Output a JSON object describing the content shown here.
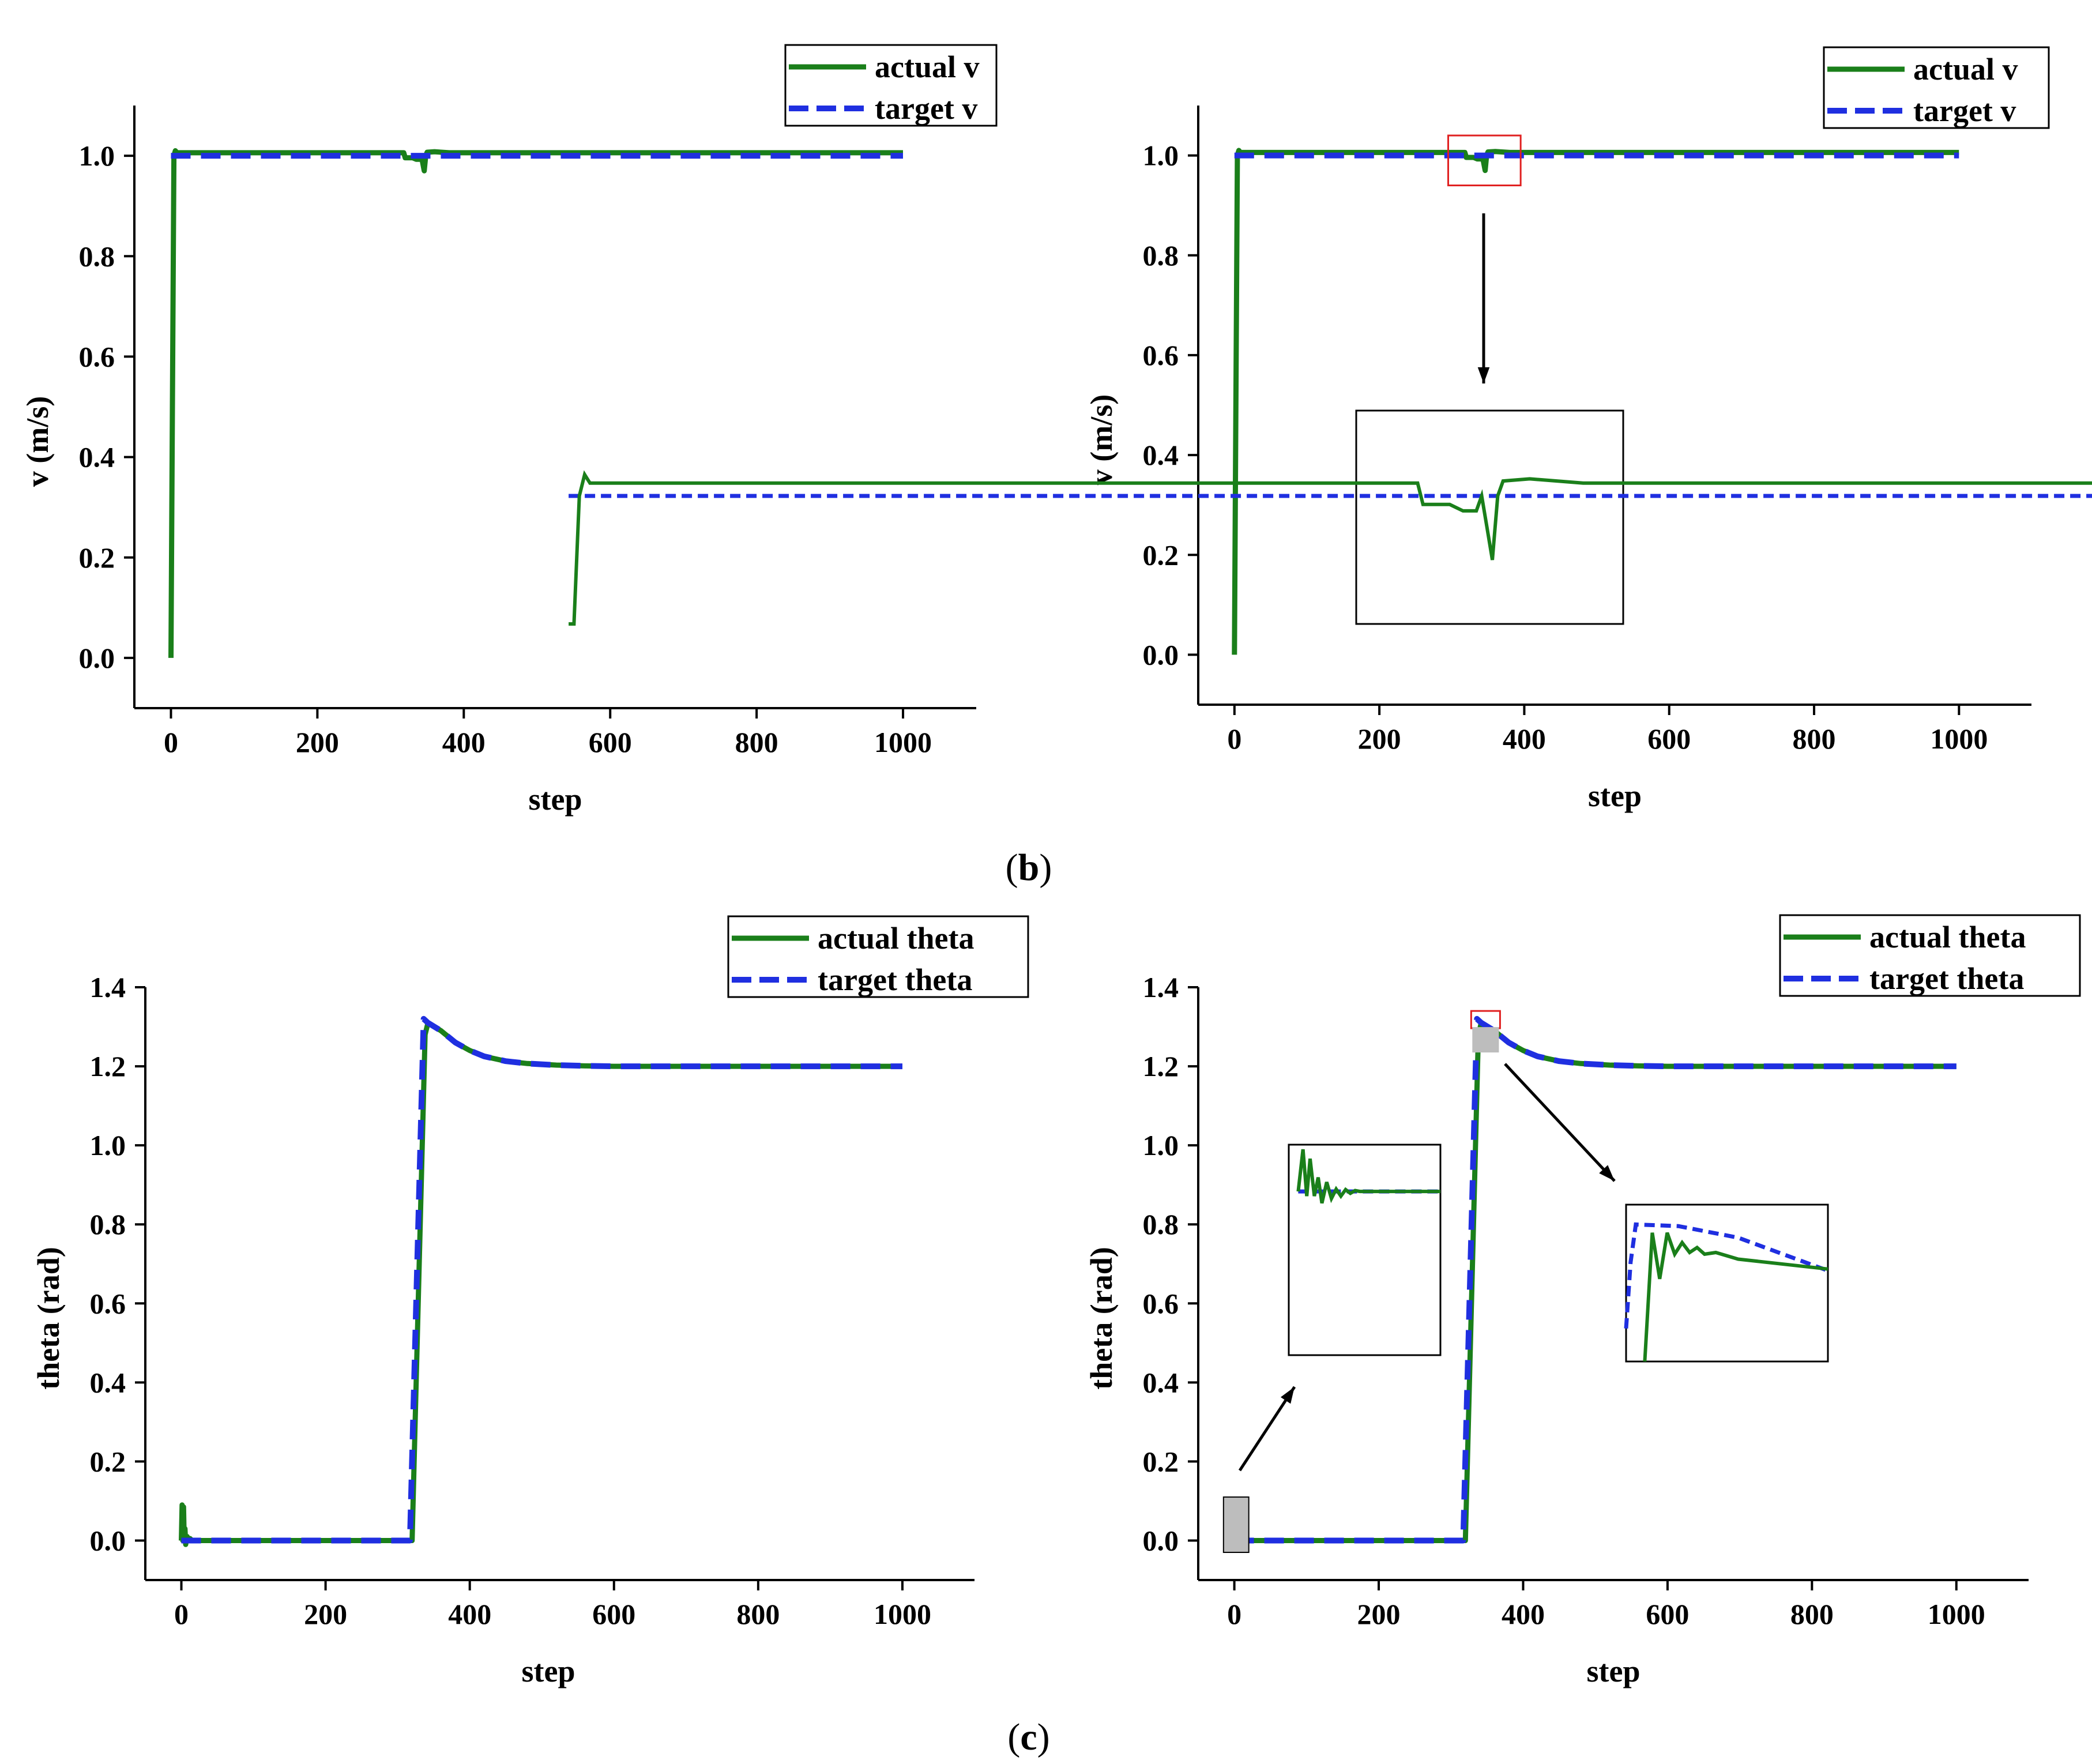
{
  "figure": {
    "caption_b": "b",
    "caption_c": "c",
    "caption_paren_open": "(",
    "caption_paren_close": ")"
  },
  "colors": {
    "actual": "#1a7f1a",
    "target": "#1f2fe0",
    "zoom_box": "#e02020",
    "highlight": "#bdbdbd"
  },
  "chart_data": [
    {
      "id": "v-left",
      "type": "line",
      "xlabel": "step",
      "ylabel": "v (m/s)",
      "xlim": [
        -50,
        1100
      ],
      "ylim": [
        -0.1,
        1.1
      ],
      "xticks": [
        0,
        200,
        400,
        600,
        800,
        1000
      ],
      "yticks": [
        0.0,
        0.2,
        0.4,
        0.6,
        0.8,
        1.0
      ],
      "ytick_labels": [
        "0.0",
        "0.2",
        "0.4",
        "0.6",
        "0.8",
        "1.0"
      ],
      "legend": [
        "actual v",
        "target v"
      ],
      "legend_position": "top-right",
      "series": [
        {
          "name": "actual v",
          "style": "solid",
          "x": [
            0,
            2,
            4,
            6,
            8,
            300,
            318,
            320,
            330,
            335,
            340,
            342,
            344,
            346,
            348,
            350,
            360,
            380,
            1000
          ],
          "y": [
            0.0,
            0.5,
            1.0,
            1.01,
            1.006,
            1.006,
            1.006,
            0.996,
            0.996,
            0.993,
            0.993,
            1.0,
            0.985,
            0.97,
            1.0,
            1.007,
            1.008,
            1.006,
            1.006
          ]
        },
        {
          "name": "target v",
          "style": "dashed",
          "x": [
            0,
            1000
          ],
          "y": [
            1.0,
            1.0
          ]
        }
      ]
    },
    {
      "id": "v-right",
      "type": "line",
      "xlabel": "step",
      "ylabel": "v (m/s)",
      "xlim": [
        -50,
        1100
      ],
      "ylim": [
        -0.1,
        1.1
      ],
      "xticks": [
        0,
        200,
        400,
        600,
        800,
        1000
      ],
      "yticks": [
        0.0,
        0.2,
        0.4,
        0.6,
        0.8,
        1.0
      ],
      "ytick_labels": [
        "0.0",
        "0.2",
        "0.4",
        "0.6",
        "0.8",
        "1.0"
      ],
      "legend": [
        "actual v",
        "target v"
      ],
      "legend_position": "top-right",
      "zoom_region": {
        "x": [
          295,
          395
        ],
        "y": [
          0.94,
          1.04
        ]
      },
      "series": [
        {
          "name": "actual v",
          "style": "solid",
          "x": [
            0,
            2,
            4,
            6,
            8,
            300,
            318,
            320,
            330,
            335,
            340,
            342,
            344,
            346,
            348,
            350,
            360,
            380,
            1000
          ],
          "y": [
            0.0,
            0.5,
            1.0,
            1.01,
            1.006,
            1.006,
            1.006,
            0.996,
            0.996,
            0.993,
            0.993,
            1.0,
            0.985,
            0.97,
            1.0,
            1.007,
            1.008,
            1.006,
            1.006
          ]
        },
        {
          "name": "target v",
          "style": "dashed",
          "x": [
            0,
            1000
          ],
          "y": [
            1.0,
            1.0
          ]
        }
      ]
    },
    {
      "id": "theta-left",
      "type": "line",
      "xlabel": "step",
      "ylabel": "theta (rad)",
      "xlim": [
        -50,
        1100
      ],
      "ylim": [
        -0.1,
        1.4
      ],
      "xticks": [
        0,
        200,
        400,
        600,
        800,
        1000
      ],
      "yticks": [
        0.0,
        0.2,
        0.4,
        0.6,
        0.8,
        1.0,
        1.2,
        1.4
      ],
      "ytick_labels": [
        "0.0",
        "0.2",
        "0.4",
        "0.6",
        "0.8",
        "1.0",
        "1.2",
        "1.4"
      ],
      "legend": [
        "actual theta",
        "target theta"
      ],
      "legend_position": "top-right",
      "series": [
        {
          "name": "actual theta",
          "style": "solid",
          "x": [
            0,
            1,
            2,
            3,
            4,
            5,
            6,
            8,
            10,
            12,
            15,
            320,
            338,
            342,
            360,
            380,
            400,
            420,
            450,
            480,
            520,
            560,
            600,
            700,
            1000
          ],
          "y": [
            0.0,
            0.09,
            0.0,
            0.085,
            0.0,
            0.03,
            -0.01,
            0.01,
            0.0,
            0.005,
            0.0,
            0.0,
            1.28,
            1.31,
            1.29,
            1.26,
            1.24,
            1.225,
            1.213,
            1.207,
            1.203,
            1.201,
            1.2,
            1.2,
            1.2
          ]
        },
        {
          "name": "target theta",
          "style": "dashed",
          "x": [
            0,
            317,
            336,
            342,
            360,
            380,
            400,
            420,
            450,
            480,
            520,
            560,
            600,
            700,
            1000
          ],
          "y": [
            0.0,
            0.0,
            1.32,
            1.31,
            1.29,
            1.26,
            1.24,
            1.225,
            1.213,
            1.207,
            1.203,
            1.201,
            1.2,
            1.2,
            1.2
          ]
        }
      ]
    },
    {
      "id": "theta-right",
      "type": "line",
      "xlabel": "step",
      "ylabel": "theta (rad)",
      "xlim": [
        -50,
        1100
      ],
      "ylim": [
        -0.1,
        1.4
      ],
      "xticks": [
        0,
        200,
        400,
        600,
        800,
        1000
      ],
      "yticks": [
        0.0,
        0.2,
        0.4,
        0.6,
        0.8,
        1.0,
        1.2,
        1.4
      ],
      "ytick_labels": [
        "0.0",
        "0.2",
        "0.4",
        "0.6",
        "0.8",
        "1.0",
        "1.2",
        "1.4"
      ],
      "legend": [
        "actual theta",
        "target theta"
      ],
      "legend_position": "top-right",
      "zoom_regions": [
        {
          "x": [
            -15,
            20
          ],
          "y": [
            -0.03,
            0.11
          ]
        },
        {
          "x": [
            328,
            368
          ],
          "y": [
            1.25,
            1.34
          ]
        }
      ],
      "series": [
        {
          "name": "actual theta",
          "style": "solid",
          "x": [
            0,
            1,
            2,
            3,
            4,
            5,
            6,
            8,
            10,
            12,
            15,
            320,
            338,
            342,
            360,
            380,
            400,
            420,
            450,
            480,
            520,
            560,
            600,
            700,
            1000
          ],
          "y": [
            0.0,
            0.09,
            0.0,
            0.085,
            0.0,
            0.03,
            -0.01,
            0.01,
            0.0,
            0.005,
            0.0,
            0.0,
            1.28,
            1.31,
            1.29,
            1.26,
            1.24,
            1.225,
            1.213,
            1.207,
            1.203,
            1.201,
            1.2,
            1.2,
            1.2
          ]
        },
        {
          "name": "target theta",
          "style": "dashed",
          "x": [
            0,
            317,
            336,
            342,
            360,
            380,
            400,
            420,
            450,
            480,
            520,
            560,
            600,
            700,
            1000
          ],
          "y": [
            0.0,
            0.0,
            1.32,
            1.31,
            1.29,
            1.26,
            1.24,
            1.225,
            1.213,
            1.207,
            1.203,
            1.201,
            1.2,
            1.2,
            1.2
          ]
        }
      ]
    }
  ]
}
